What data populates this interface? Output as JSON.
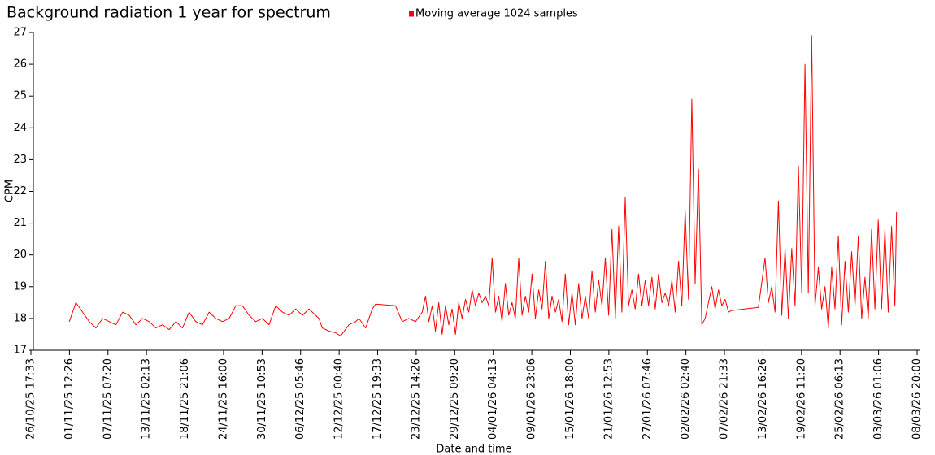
{
  "chart_data": {
    "type": "line",
    "title": "Background radiation 1 year for spectrum",
    "xlabel": "Date and time",
    "ylabel": "CPM",
    "legend": "top",
    "ylim": [
      17,
      27
    ],
    "yticks": [
      17,
      18,
      19,
      20,
      21,
      22,
      23,
      24,
      25,
      26,
      27
    ],
    "xlim": [
      "26/10/25 17:33",
      "08/03/26 20:00"
    ],
    "xticks": [
      "26/10/25 17:33",
      "01/11/25 12:26",
      "07/11/25 07:20",
      "13/11/25 02:13",
      "18/11/25 21:06",
      "24/11/25 16:00",
      "30/11/25 10:53",
      "06/12/25 05:46",
      "12/12/25 00:40",
      "17/12/25 19:33",
      "23/12/25 14:26",
      "29/12/25 09:20",
      "04/01/26 04:13",
      "09/01/26 23:06",
      "15/01/26 18:00",
      "21/01/26 12:53",
      "27/01/26 07:46",
      "02/02/26 02:40",
      "07/02/26 21:33",
      "13/02/26 16:26",
      "19/02/26 11:20",
      "25/02/26 06:13",
      "03/03/26 01:06",
      "08/03/26 20:00"
    ],
    "x": [
      "01/11/25 12:00",
      "02/11/25 12:00",
      "03/11/25 12:00",
      "04/11/25 12:00",
      "05/11/25 12:00",
      "06/11/25 12:00",
      "07/11/25 12:00",
      "08/11/25 12:00",
      "09/11/25 12:00",
      "10/11/25 12:00",
      "11/11/25 12:00",
      "12/11/25 12:00",
      "13/11/25 12:00",
      "14/11/25 12:00",
      "15/11/25 12:00",
      "16/11/25 12:00",
      "17/11/25 12:00",
      "18/11/25 12:00",
      "19/11/25 12:00",
      "20/11/25 12:00",
      "21/11/25 12:00",
      "22/11/25 12:00",
      "23/11/25 12:00",
      "24/11/25 12:00",
      "25/11/25 12:00",
      "26/11/25 12:00",
      "27/11/25 12:00",
      "28/11/25 12:00",
      "29/11/25 12:00",
      "30/11/25 12:00",
      "01/12/25 12:00",
      "02/12/25 12:00",
      "03/12/25 12:00",
      "04/12/25 12:00",
      "05/12/25 12:00",
      "06/12/25 12:00",
      "07/12/25 12:00",
      "08/12/25 12:00",
      "09/12/25 00:00",
      "09/12/25 12:00",
      "10/12/25 12:00",
      "11/12/25 12:00",
      "12/12/25 06:00",
      "13/12/25 12:00",
      "14/12/25 12:00",
      "15/12/25 00:00",
      "16/12/25 00:00",
      "17/12/25 00:00",
      "17/12/25 12:00",
      "20/12/25 12:00",
      "21/12/25 12:00",
      "22/12/25 12:00",
      "23/12/25 12:00",
      "24/12/25 12:00",
      "25/12/25 00:00",
      "25/12/25 12:00",
      "26/12/25 00:00",
      "26/12/25 12:00",
      "27/12/25 00:00",
      "27/12/25 12:00",
      "28/12/25 00:00",
      "28/12/25 12:00",
      "29/12/25 00:00",
      "29/12/25 12:00",
      "30/12/25 00:00",
      "30/12/25 12:00",
      "31/12/25 00:00",
      "31/12/25 12:00",
      "01/01/26 00:00",
      "01/01/26 12:00",
      "02/01/26 00:00",
      "02/01/26 12:00",
      "03/01/26 00:00",
      "03/01/26 12:00",
      "04/01/26 00:00",
      "04/01/26 12:00",
      "05/01/26 00:00",
      "05/01/26 12:00",
      "06/01/26 00:00",
      "06/01/26 12:00",
      "07/01/26 00:00",
      "07/01/26 12:00",
      "08/01/26 00:00",
      "08/01/26 12:00",
      "09/01/26 00:00",
      "09/01/26 12:00",
      "10/01/26 00:00",
      "10/01/26 12:00",
      "11/01/26 00:00",
      "11/01/26 12:00",
      "12/01/26 00:00",
      "12/01/26 12:00",
      "13/01/26 00:00",
      "13/01/26 12:00",
      "14/01/26 00:00",
      "14/01/26 12:00",
      "15/01/26 00:00",
      "15/01/26 12:00",
      "16/01/26 00:00",
      "16/01/26 12:00",
      "17/01/26 00:00",
      "17/01/26 12:00",
      "18/01/26 00:00",
      "18/01/26 12:00",
      "19/01/26 00:00",
      "19/01/26 12:00",
      "20/01/26 00:00",
      "20/01/26 12:00",
      "21/01/26 00:00",
      "21/01/26 12:00",
      "22/01/26 00:00",
      "22/01/26 12:00",
      "23/01/26 00:00",
      "23/01/26 12:00",
      "24/01/26 00:00",
      "24/01/26 12:00",
      "25/01/26 00:00",
      "25/01/26 12:00",
      "26/01/26 00:00",
      "26/01/26 12:00",
      "27/01/26 00:00",
      "27/01/26 12:00",
      "28/01/26 00:00",
      "28/01/26 12:00",
      "29/01/26 00:00",
      "29/01/26 12:00",
      "30/01/26 00:00",
      "30/01/26 12:00",
      "31/01/26 00:00",
      "31/01/26 12:00",
      "01/02/26 00:00",
      "01/02/26 12:00",
      "02/02/26 00:00",
      "02/02/26 12:00",
      "03/02/26 00:00",
      "03/02/26 12:00",
      "04/02/26 00:00",
      "04/02/26 12:00",
      "05/02/26 00:00",
      "05/02/26 12:00",
      "06/02/26 00:00",
      "06/02/26 12:00",
      "07/02/26 00:00",
      "07/02/26 12:00",
      "08/02/26 00:00",
      "08/02/26 12:00",
      "09/02/26 00:00",
      "13/02/26 00:00",
      "14/02/26 00:00",
      "14/02/26 12:00",
      "15/02/26 00:00",
      "15/02/26 12:00",
      "16/02/26 00:00",
      "16/02/26 12:00",
      "17/02/26 00:00",
      "17/02/26 12:00",
      "18/02/26 00:00",
      "18/02/26 12:00",
      "19/02/26 00:00",
      "19/02/26 12:00",
      "20/02/26 00:00",
      "20/02/26 12:00",
      "21/02/26 00:00",
      "21/02/26 12:00",
      "22/02/26 00:00",
      "22/02/26 12:00",
      "23/02/26 00:00",
      "23/02/26 12:00",
      "24/02/26 00:00",
      "24/02/26 12:00",
      "25/02/26 00:00",
      "25/02/26 12:00",
      "26/02/26 00:00",
      "26/02/26 12:00",
      "27/02/26 00:00",
      "27/02/26 12:00",
      "28/02/26 00:00",
      "28/02/26 12:00",
      "01/03/26 00:00",
      "01/03/26 12:00",
      "02/03/26 00:00",
      "02/03/26 12:00",
      "03/03/26 00:00",
      "03/03/26 12:00",
      "04/03/26 00:00",
      "04/03/26 12:00",
      "05/03/26 00:00",
      "05/03/26 12:00",
      "05/03/26 18:00"
    ],
    "series": [
      {
        "name": "Moving average 1024 samples",
        "color": "#ff0000",
        "values": [
          17.9,
          18.5,
          18.2,
          17.9,
          17.7,
          18.0,
          17.9,
          17.8,
          18.2,
          18.1,
          17.8,
          18.0,
          17.9,
          17.7,
          17.8,
          17.65,
          17.9,
          17.7,
          18.2,
          17.9,
          17.8,
          18.2,
          18.0,
          17.9,
          18.0,
          18.4,
          18.4,
          18.1,
          17.9,
          18.0,
          17.8,
          18.4,
          18.2,
          18.1,
          18.3,
          18.1,
          18.3,
          18.1,
          18.0,
          17.7,
          17.6,
          17.55,
          17.45,
          17.8,
          17.9,
          18.0,
          17.7,
          18.3,
          18.45,
          18.4,
          17.9,
          18.0,
          17.9,
          18.2,
          18.7,
          17.9,
          18.4,
          17.6,
          18.5,
          17.5,
          18.4,
          17.8,
          18.3,
          17.5,
          18.5,
          18.0,
          18.6,
          18.2,
          18.9,
          18.4,
          18.8,
          18.5,
          18.7,
          18.4,
          19.9,
          18.2,
          18.7,
          17.9,
          19.1,
          18.1,
          18.5,
          18.0,
          19.9,
          18.1,
          18.7,
          18.2,
          19.4,
          18.0,
          18.9,
          18.3,
          19.8,
          18.0,
          18.7,
          18.2,
          18.6,
          17.9,
          19.4,
          17.8,
          18.8,
          17.8,
          19.1,
          18.0,
          18.7,
          18.0,
          19.5,
          18.2,
          19.2,
          18.4,
          19.9,
          18.1,
          20.8,
          18.0,
          20.9,
          18.2,
          21.8,
          18.4,
          18.9,
          18.3,
          19.4,
          18.4,
          19.2,
          18.4,
          19.3,
          18.3,
          19.4,
          18.5,
          18.8,
          18.4,
          19.2,
          18.2,
          19.8,
          18.4,
          21.4,
          18.6,
          24.9,
          19.1,
          22.7,
          17.8,
          18.0,
          18.5,
          19.0,
          18.3,
          18.9,
          18.4,
          18.6,
          18.2,
          18.25,
          18.35,
          19.9,
          18.5,
          19.0,
          18.2,
          21.7,
          18.1,
          20.2,
          18.0,
          20.2,
          18.4,
          22.8,
          18.8,
          26.0,
          18.8,
          26.9,
          18.4,
          19.6,
          18.3,
          19.0,
          17.7,
          19.6,
          18.3,
          20.6,
          17.8,
          19.8,
          18.2,
          20.1,
          18.4,
          20.6,
          18.0,
          19.3,
          18.0,
          20.8,
          18.3,
          21.1,
          18.3,
          20.8,
          18.2,
          20.9,
          18.4,
          21.35
        ]
      }
    ]
  }
}
